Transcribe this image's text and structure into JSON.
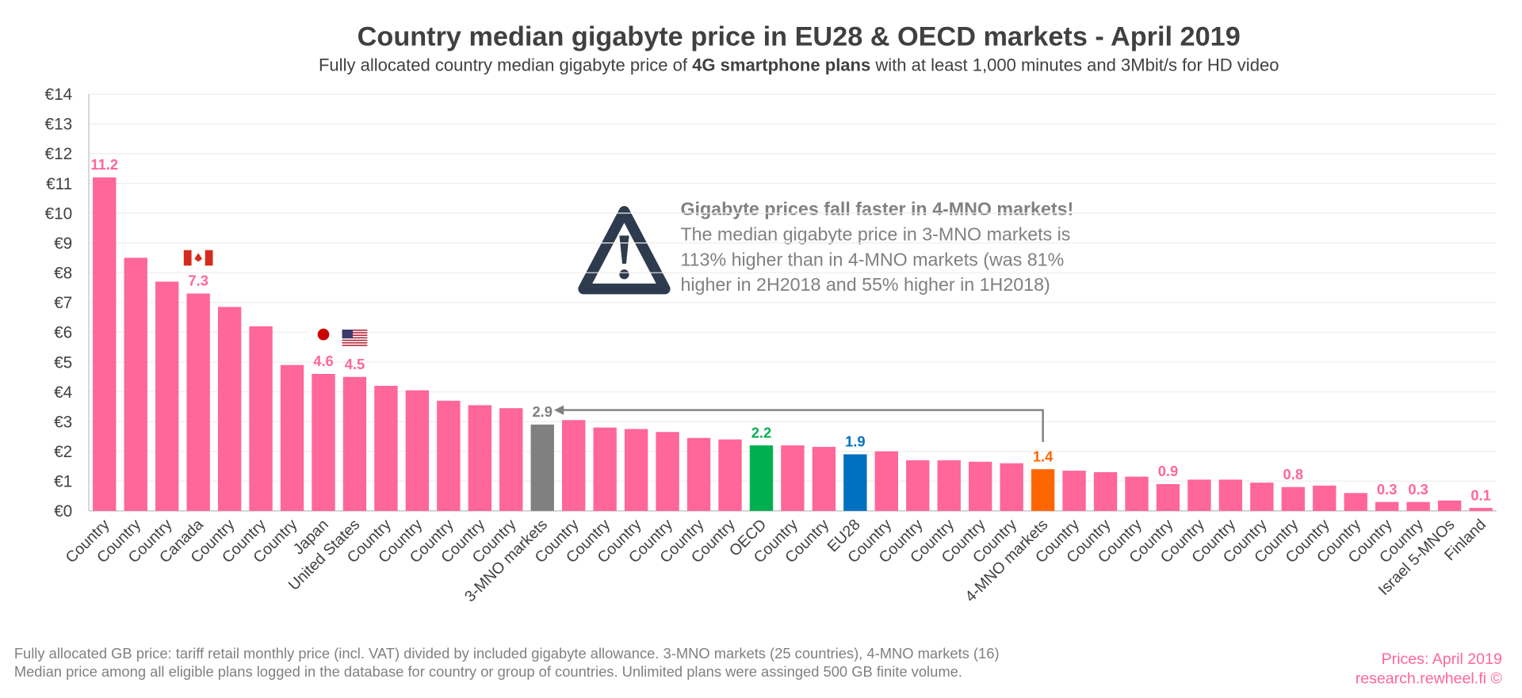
{
  "chart_data": {
    "type": "bar",
    "title": "Country median gigabyte price in EU28 & OECD markets - April 2019",
    "subtitle_parts": [
      "Fully allocated country median gigabyte price of",
      "4G smartphone plans",
      "with at least 1,000 minutes and 3Mbit/s for HD video"
    ],
    "categories": [
      "Country",
      "Country",
      "Country",
      "Canada",
      "Country",
      "Country",
      "Country",
      "Japan",
      "United States",
      "Country",
      "Country",
      "Country",
      "Country",
      "Country",
      "3-MNO markets",
      "Country",
      "Country",
      "Country",
      "Country",
      "Country",
      "Country",
      "OECD",
      "Country",
      "Country",
      "EU28",
      "Country",
      "Country",
      "Country",
      "Country",
      "Country",
      "4-MNO markets",
      "Country",
      "Country",
      "Country",
      "Country",
      "Country",
      "Country",
      "Country",
      "Country",
      "Country",
      "Country",
      "Country",
      "Country",
      "Israel 5-MNOs",
      "Finland"
    ],
    "values": [
      11.2,
      8.5,
      7.7,
      7.3,
      6.85,
      6.2,
      4.9,
      4.6,
      4.5,
      4.2,
      4.05,
      3.7,
      3.55,
      3.45,
      2.9,
      3.05,
      2.8,
      2.75,
      2.65,
      2.45,
      2.4,
      2.2,
      2.2,
      2.15,
      1.9,
      2.0,
      1.7,
      1.7,
      1.65,
      1.6,
      1.4,
      1.35,
      1.3,
      1.15,
      0.9,
      1.05,
      1.05,
      0.95,
      0.8,
      0.85,
      0.6,
      0.3,
      0.3,
      0.35,
      0.1
    ],
    "value_labels": [
      "11.2",
      null,
      null,
      "7.3",
      null,
      null,
      null,
      "4.6",
      "4.5",
      null,
      null,
      null,
      null,
      null,
      "2.9",
      null,
      null,
      null,
      null,
      null,
      null,
      "2.2",
      null,
      null,
      "1.9",
      null,
      null,
      null,
      null,
      null,
      "1.4",
      null,
      null,
      null,
      "0.9",
      null,
      null,
      null,
      "0.8",
      null,
      null,
      "0.3",
      "0.3",
      null,
      "0.1"
    ],
    "colors": [
      "#ff6699",
      "#ff6699",
      "#ff6699",
      "#ff6699",
      "#ff6699",
      "#ff6699",
      "#ff6699",
      "#ff6699",
      "#ff6699",
      "#ff6699",
      "#ff6699",
      "#ff6699",
      "#ff6699",
      "#ff6699",
      "#808080",
      "#ff6699",
      "#ff6699",
      "#ff6699",
      "#ff6699",
      "#ff6699",
      "#ff6699",
      "#00b050",
      "#ff6699",
      "#ff6699",
      "#0070c0",
      "#ff6699",
      "#ff6699",
      "#ff6699",
      "#ff6699",
      "#ff6699",
      "#ff6600",
      "#ff6699",
      "#ff6699",
      "#ff6699",
      "#ff6699",
      "#ff6699",
      "#ff6699",
      "#ff6699",
      "#ff6699",
      "#ff6699",
      "#ff6699",
      "#ff6699",
      "#ff6699",
      "#ff6699",
      "#ff6699"
    ],
    "ylim": [
      0,
      14
    ],
    "yticks": [
      {
        "value": 0,
        "label": "€0"
      },
      {
        "value": 1,
        "label": "€1"
      },
      {
        "value": 2,
        "label": "€2"
      },
      {
        "value": 3,
        "label": "€3"
      },
      {
        "value": 4,
        "label": "€4"
      },
      {
        "value": 5,
        "label": "€5"
      },
      {
        "value": 6,
        "label": "€6"
      },
      {
        "value": 7,
        "label": "€7"
      },
      {
        "value": 8,
        "label": "€8"
      },
      {
        "value": 9,
        "label": "€9"
      },
      {
        "value": 10,
        "label": "€10"
      },
      {
        "value": 11,
        "label": "€11"
      },
      {
        "value": 12,
        "label": "€12"
      },
      {
        "value": 13,
        "label": "€13"
      },
      {
        "value": 14,
        "label": "€14"
      }
    ],
    "grid": true,
    "annotation": {
      "heading": "Gigabyte prices fall faster in 4-MNO markets!",
      "lines": [
        "The median gigabyte price in 3-MNO markets is",
        "113% higher than in 4-MNO markets (was 81%",
        "higher in 2H2018 and 55% higher in 1H2018)"
      ]
    },
    "footnotes": [
      "Fully allocated GB price: tariff retail monthly price (incl. VAT) divided by included gigabyte allowance. 3-MNO markets (25 countries), 4-MNO markets (16)",
      "Median price among all eligible plans logged in the database for country or group of countries. Unlimited plans were assinged 500 GB finite volume."
    ],
    "source": [
      "Prices: April 2019",
      "research.rewheel.fi ©"
    ]
  }
}
